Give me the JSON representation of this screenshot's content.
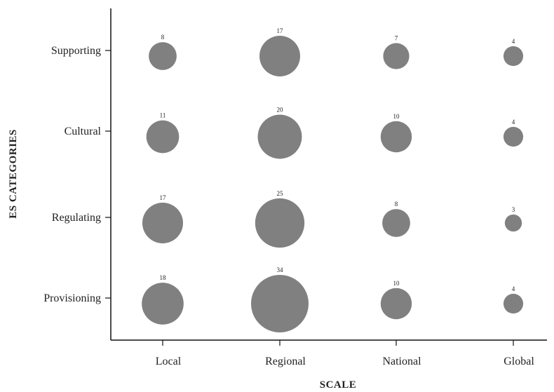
{
  "chart_data": {
    "type": "scatter",
    "subtype": "bubble",
    "xlabel": "SCALE",
    "ylabel": "ES CATEGORIES",
    "x_categories": [
      "Local",
      "Regional",
      "National",
      "Global"
    ],
    "y_categories": [
      "Provisioning",
      "Regulating",
      "Cultural",
      "Supporting"
    ],
    "points": [
      {
        "x": "Local",
        "y": "Supporting",
        "value": 8
      },
      {
        "x": "Regional",
        "y": "Supporting",
        "value": 17
      },
      {
        "x": "National",
        "y": "Supporting",
        "value": 7
      },
      {
        "x": "Global",
        "y": "Supporting",
        "value": 4
      },
      {
        "x": "Local",
        "y": "Cultural",
        "value": 11
      },
      {
        "x": "Regional",
        "y": "Cultural",
        "value": 20
      },
      {
        "x": "National",
        "y": "Cultural",
        "value": 10
      },
      {
        "x": "Global",
        "y": "Cultural",
        "value": 4
      },
      {
        "x": "Local",
        "y": "Regulating",
        "value": 17
      },
      {
        "x": "Regional",
        "y": "Regulating",
        "value": 25
      },
      {
        "x": "National",
        "y": "Regulating",
        "value": 8
      },
      {
        "x": "Global",
        "y": "Regulating",
        "value": 3
      },
      {
        "x": "Local",
        "y": "Provisioning",
        "value": 18
      },
      {
        "x": "Regional",
        "y": "Provisioning",
        "value": 34
      },
      {
        "x": "National",
        "y": "Provisioning",
        "value": 10
      },
      {
        "x": "Global",
        "y": "Provisioning",
        "value": 4
      }
    ],
    "bubble_color": "#808080",
    "grid": false,
    "legend": "none"
  }
}
